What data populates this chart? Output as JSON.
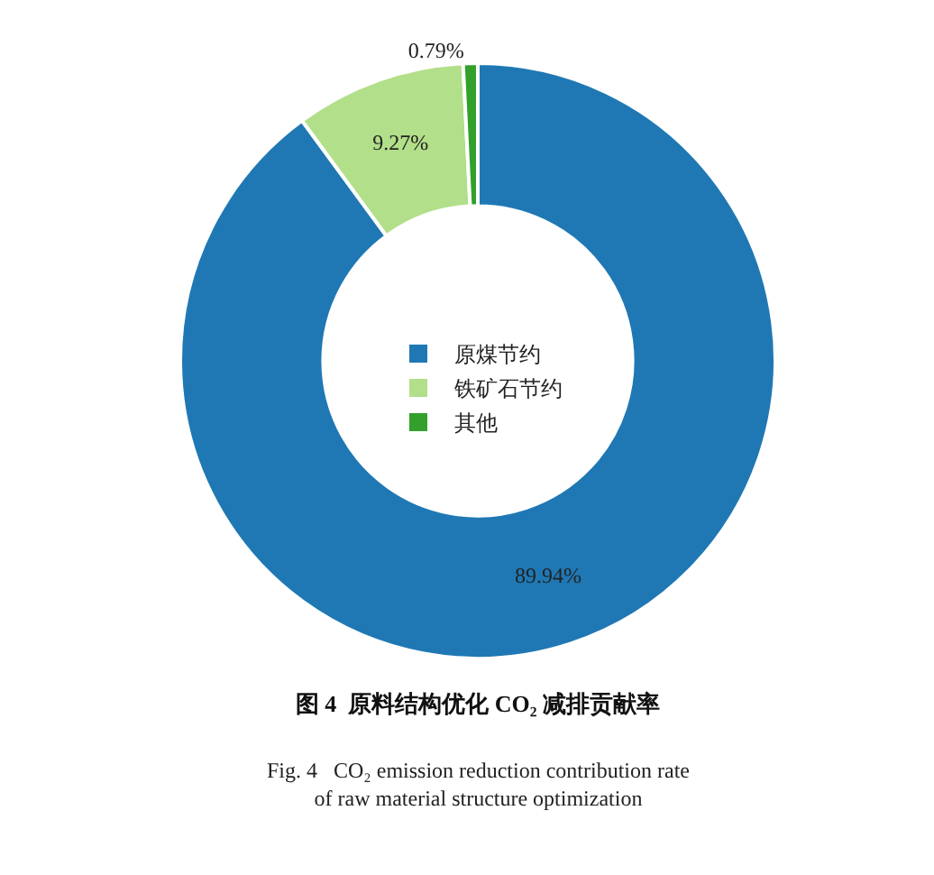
{
  "chart_data": {
    "type": "donut",
    "title": "图 4  原料结构优化 CO₂ 减排贡献率",
    "subtitle": "Fig. 4   CO₂ emission reduction contribution rate of raw material structure optimization",
    "categories": [
      "原煤节约",
      "铁矿石节约",
      "其他"
    ],
    "values": [
      89.94,
      9.27,
      0.79
    ],
    "colors": [
      "#1f78b4",
      "#b2df8a",
      "#33a02c"
    ],
    "value_labels": [
      "89.94%",
      "9.27%",
      "0.79%"
    ],
    "legend": "center"
  }
}
